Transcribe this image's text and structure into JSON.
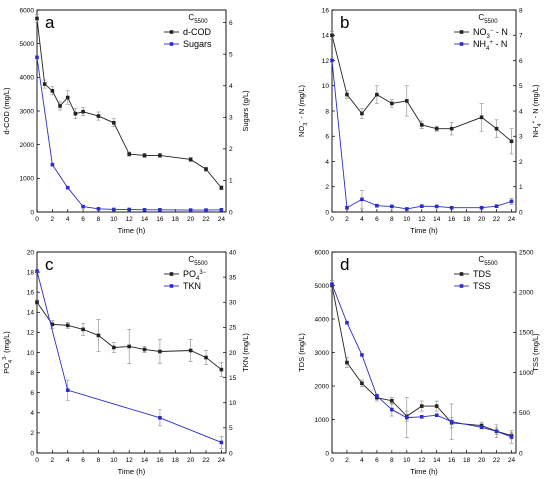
{
  "colors": {
    "series1": "#222222",
    "series2": "#2d2dcc",
    "errbar": "#888888"
  },
  "chart_data": [
    {
      "panel_label": "a",
      "type": "line",
      "legend_title": "C5500",
      "legend_title_main": "C",
      "legend_title_sub": "5500",
      "legend_placement": "top-right",
      "xlabel": "Time (h)",
      "ylabel": "d-COD (mg/L)",
      "y2label": "Sugars (g/L)",
      "xlim": [
        0,
        24.6
      ],
      "ylim": [
        0,
        6000
      ],
      "y2lim": [
        0,
        6.4
      ],
      "xticks": [
        0,
        2,
        4,
        6,
        8,
        10,
        12,
        14,
        16,
        18,
        20,
        22,
        24
      ],
      "yticks": [
        0,
        1000,
        2000,
        3000,
        4000,
        5000,
        6000
      ],
      "y2ticks": [
        0,
        1,
        2,
        3,
        4,
        5,
        6
      ],
      "series": [
        {
          "name": "d-COD",
          "axis": "left",
          "color": "#222222",
          "marker": "square",
          "x": [
            0,
            1,
            2,
            3,
            4,
            5,
            6,
            8,
            10,
            12,
            14,
            16,
            20,
            22,
            24
          ],
          "y": [
            5750,
            3800,
            3600,
            3150,
            3400,
            2920,
            2980,
            2850,
            2650,
            1720,
            1680,
            1680,
            1560,
            1270,
            720
          ],
          "err": [
            120,
            120,
            120,
            120,
            200,
            150,
            120,
            120,
            120,
            60,
            60,
            60,
            60,
            60,
            60
          ]
        },
        {
          "name": "Sugars",
          "axis": "right",
          "color": "#2d2dcc",
          "marker": "square",
          "x": [
            0,
            2,
            4,
            6,
            8,
            10,
            12,
            14,
            16,
            20,
            22,
            24
          ],
          "y": [
            4.9,
            1.5,
            0.77,
            0.17,
            0.1,
            0.08,
            0.08,
            0.07,
            0.07,
            0.06,
            0.06,
            0.07
          ],
          "err": [
            0,
            0,
            0,
            0,
            0,
            0,
            0,
            0,
            0,
            0,
            0,
            0
          ]
        }
      ]
    },
    {
      "panel_label": "b",
      "type": "line",
      "legend_title": "C5500",
      "legend_title_main": "C",
      "legend_title_sub": "5500",
      "legend_placement": "top-right",
      "xlabel": "Time (h)",
      "ylabel": "NO3- - N (mg/L)",
      "ylabel_main": "NO",
      "ylabel_sub": "3",
      "ylabel_sup": "-",
      "ylabel_tail": " - N (mg/L)",
      "y2label": "NH4+ - N (mg/L)",
      "y2label_main": "NH",
      "y2label_sub": "4",
      "y2label_sup": "+",
      "y2label_tail": " - N (mg/L)",
      "xlim": [
        0,
        24.6
      ],
      "ylim": [
        0,
        16
      ],
      "y2lim": [
        0,
        8
      ],
      "xticks": [
        0,
        2,
        4,
        6,
        8,
        10,
        12,
        14,
        16,
        18,
        20,
        22,
        24
      ],
      "yticks": [
        0,
        2,
        4,
        6,
        8,
        10,
        12,
        14,
        16
      ],
      "y2ticks": [
        0,
        1,
        2,
        3,
        4,
        5,
        6,
        7,
        8
      ],
      "series": [
        {
          "name": "NO3- - N",
          "legend_main": "NO",
          "legend_sub": "3",
          "legend_sup": "−",
          "legend_tail": " - N",
          "axis": "left",
          "color": "#222222",
          "marker": "square",
          "x": [
            0,
            2,
            4,
            6,
            8,
            10,
            12,
            14,
            16,
            20,
            22,
            24
          ],
          "y": [
            14.0,
            9.3,
            7.8,
            9.3,
            8.6,
            8.8,
            6.9,
            6.6,
            6.6,
            7.5,
            6.6,
            5.6
          ],
          "err": [
            0.3,
            0.3,
            0.4,
            0.7,
            0.3,
            1.2,
            0.3,
            0.2,
            0.5,
            1.1,
            0.7,
            1.0
          ]
        },
        {
          "name": "NH4+ - N",
          "legend_main": "NH",
          "legend_sub": "4",
          "legend_sup": "+",
          "legend_tail": " - N",
          "axis": "right",
          "color": "#2d2dcc",
          "marker": "square",
          "x": [
            0,
            2,
            4,
            6,
            8,
            10,
            12,
            14,
            16,
            20,
            22,
            24
          ],
          "y": [
            6.0,
            0.17,
            0.5,
            0.25,
            0.22,
            0.12,
            0.23,
            0.22,
            0.17,
            0.17,
            0.23,
            0.42
          ],
          "err": [
            0,
            0.05,
            0.35,
            0.05,
            0.05,
            0.05,
            0.05,
            0.05,
            0.05,
            0.05,
            0.05,
            0.12
          ]
        }
      ]
    },
    {
      "panel_label": "c",
      "type": "line",
      "legend_title": "C5500",
      "legend_title_main": "C",
      "legend_title_sub": "5500",
      "legend_placement": "top-right",
      "xlabel": "Time (h)",
      "ylabel": "PO43- (mg/L)",
      "ylabel_main": "PO",
      "ylabel_sub": "4",
      "ylabel_sup": "3-",
      "ylabel_tail": " (mg/L)",
      "y2label": "TKN (mg/L)",
      "xlim": [
        0,
        24.6
      ],
      "ylim": [
        0,
        20
      ],
      "y2lim": [
        0,
        40
      ],
      "xticks": [
        0,
        2,
        4,
        6,
        8,
        10,
        12,
        14,
        16,
        18,
        20,
        22,
        24
      ],
      "yticks": [
        0,
        2,
        4,
        6,
        8,
        10,
        12,
        14,
        16,
        18,
        20
      ],
      "y2ticks": [
        0,
        5,
        10,
        15,
        20,
        25,
        30,
        35,
        40
      ],
      "series": [
        {
          "name": "PO43-",
          "legend_main": "PO",
          "legend_sub": "4",
          "legend_sup": "3−",
          "legend_tail": "",
          "axis": "left",
          "color": "#222222",
          "marker": "square",
          "x": [
            0,
            2,
            4,
            6,
            8,
            10,
            12,
            14,
            16,
            20,
            22,
            24
          ],
          "y": [
            15.0,
            12.8,
            12.7,
            12.3,
            11.7,
            10.5,
            10.6,
            10.3,
            10.1,
            10.2,
            9.5,
            8.3
          ],
          "err": [
            0.2,
            0.4,
            0.3,
            0.6,
            1.6,
            0.5,
            1.7,
            0.3,
            1.2,
            1.1,
            0.7,
            0.7
          ]
        },
        {
          "name": "TKN",
          "axis": "right",
          "color": "#2d2dcc",
          "marker": "square",
          "x": [
            0,
            4,
            16,
            24
          ],
          "y": [
            36.2,
            12.5,
            7.0,
            2.1
          ],
          "err": [
            0,
            2.0,
            1.6,
            1.2
          ]
        }
      ]
    },
    {
      "panel_label": "d",
      "type": "line",
      "legend_title": "C5500",
      "legend_title_main": "C",
      "legend_title_sub": "5500",
      "legend_placement": "top-right",
      "xlabel": "Time (h)",
      "ylabel": "TDS (mg/L)",
      "y2label": "TSS (mg/L)",
      "xlim": [
        0,
        24.6
      ],
      "ylim": [
        0,
        6000
      ],
      "y2lim": [
        0,
        2500
      ],
      "xticks": [
        0,
        2,
        4,
        6,
        8,
        10,
        12,
        14,
        16,
        18,
        20,
        22,
        24
      ],
      "yticks": [
        0,
        1000,
        2000,
        3000,
        4000,
        5000,
        6000
      ],
      "y2ticks": [
        0,
        500,
        1000,
        1500,
        2000,
        2500
      ],
      "series": [
        {
          "name": "TDS",
          "axis": "left",
          "color": "#222222",
          "marker": "square",
          "x": [
            0,
            2,
            4,
            6,
            8,
            10,
            12,
            14,
            16,
            20,
            22,
            24
          ],
          "y": [
            5000,
            2700,
            2080,
            1650,
            1560,
            1100,
            1400,
            1400,
            900,
            820,
            650,
            520
          ],
          "err": [
            150,
            150,
            100,
            100,
            100,
            150,
            150,
            150,
            150,
            100,
            100,
            100
          ]
        },
        {
          "name": "TSS",
          "axis": "right",
          "color": "#2d2dcc",
          "marker": "square",
          "x": [
            0,
            2,
            4,
            6,
            8,
            10,
            12,
            14,
            16,
            20,
            22,
            24
          ],
          "y": [
            2100,
            1620,
            1220,
            710,
            540,
            440,
            450,
            470,
            390,
            320,
            270,
            200
          ],
          "err": [
            0,
            0,
            0,
            0,
            80,
            250,
            0,
            0,
            220,
            0,
            80,
            80
          ]
        }
      ]
    }
  ]
}
